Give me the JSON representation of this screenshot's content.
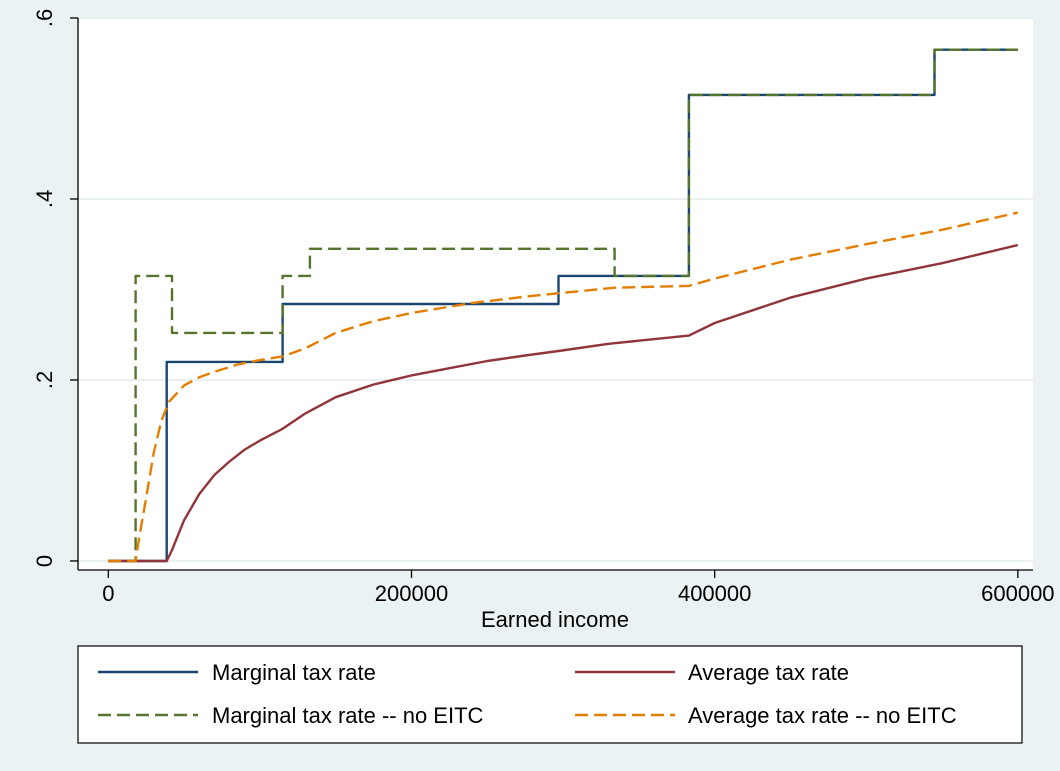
{
  "chart_data": {
    "type": "line",
    "title": "",
    "xlabel": "Earned income",
    "ylabel": "",
    "xlim": [
      -20000,
      610000
    ],
    "ylim": [
      -0.01,
      0.6
    ],
    "x_ticks": [
      0,
      200000,
      400000,
      600000
    ],
    "x_tick_labels": [
      "0",
      "200000",
      "400000",
      "600000"
    ],
    "y_ticks": [
      0,
      0.2,
      0.4,
      0.6
    ],
    "y_tick_labels": [
      "0",
      ".2",
      ".4",
      ".6"
    ],
    "grid": "horizontal",
    "legend": {
      "position": "bottom",
      "columns": 2
    },
    "series": [
      {
        "name": "Marginal tax rate",
        "color": "#1a476f",
        "dash": "solid",
        "points": [
          [
            0,
            0
          ],
          [
            38500,
            0
          ],
          [
            38500,
            0.22
          ],
          [
            115000,
            0.22
          ],
          [
            115000,
            0.284
          ],
          [
            297000,
            0.284
          ],
          [
            297000,
            0.315
          ],
          [
            383000,
            0.315
          ],
          [
            383000,
            0.515
          ],
          [
            545000,
            0.515
          ],
          [
            545000,
            0.565
          ],
          [
            600000,
            0.565
          ]
        ]
      },
      {
        "name": "Average tax rate",
        "color": "#90353b",
        "dash": "solid",
        "points": [
          [
            0,
            0
          ],
          [
            38500,
            0
          ],
          [
            42000,
            0.012
          ],
          [
            50000,
            0.045
          ],
          [
            60000,
            0.074
          ],
          [
            70000,
            0.095
          ],
          [
            80000,
            0.11
          ],
          [
            90000,
            0.123
          ],
          [
            100000,
            0.133
          ],
          [
            115000,
            0.146
          ],
          [
            130000,
            0.163
          ],
          [
            150000,
            0.181
          ],
          [
            175000,
            0.195
          ],
          [
            200000,
            0.205
          ],
          [
            225000,
            0.213
          ],
          [
            250000,
            0.221
          ],
          [
            275000,
            0.227
          ],
          [
            297000,
            0.232
          ],
          [
            330000,
            0.24
          ],
          [
            383000,
            0.249
          ],
          [
            400000,
            0.263
          ],
          [
            450000,
            0.291
          ],
          [
            500000,
            0.312
          ],
          [
            550000,
            0.329
          ],
          [
            600000,
            0.349
          ]
        ]
      },
      {
        "name": "Marginal tax rate -- no EITC",
        "color": "#55752f",
        "dash": "long-dash",
        "points": [
          [
            0,
            0
          ],
          [
            18000,
            0
          ],
          [
            18000,
            0.315
          ],
          [
            42000,
            0.315
          ],
          [
            42000,
            0.252
          ],
          [
            115000,
            0.252
          ],
          [
            115000,
            0.315
          ],
          [
            133000,
            0.315
          ],
          [
            133000,
            0.345
          ],
          [
            334000,
            0.345
          ],
          [
            334000,
            0.315
          ],
          [
            383000,
            0.315
          ],
          [
            383000,
            0.515
          ],
          [
            545000,
            0.515
          ],
          [
            545000,
            0.565
          ],
          [
            600000,
            0.565
          ]
        ]
      },
      {
        "name": "Average tax rate -- no EITC",
        "color": "#e37e00",
        "dash": "long-dash",
        "points": [
          [
            0,
            0
          ],
          [
            18000,
            0
          ],
          [
            20000,
            0.022
          ],
          [
            25000,
            0.07
          ],
          [
            30000,
            0.12
          ],
          [
            35000,
            0.155
          ],
          [
            40000,
            0.176
          ],
          [
            50000,
            0.194
          ],
          [
            60000,
            0.203
          ],
          [
            70000,
            0.209
          ],
          [
            85000,
            0.217
          ],
          [
            100000,
            0.222
          ],
          [
            115000,
            0.226
          ],
          [
            130000,
            0.235
          ],
          [
            150000,
            0.252
          ],
          [
            175000,
            0.265
          ],
          [
            200000,
            0.274
          ],
          [
            240000,
            0.285
          ],
          [
            280000,
            0.293
          ],
          [
            334000,
            0.302
          ],
          [
            383000,
            0.304
          ],
          [
            400000,
            0.312
          ],
          [
            450000,
            0.333
          ],
          [
            500000,
            0.35
          ],
          [
            550000,
            0.366
          ],
          [
            600000,
            0.385
          ]
        ]
      }
    ]
  }
}
